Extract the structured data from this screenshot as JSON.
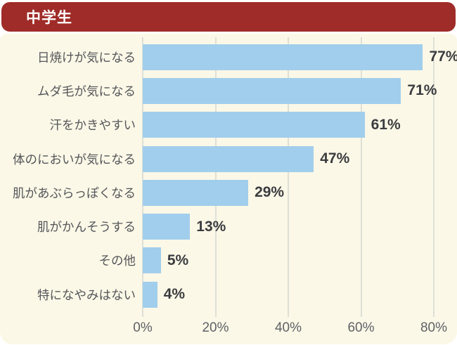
{
  "header": {
    "title": "中学生"
  },
  "colors": {
    "header_bg": "#9F2C28",
    "header_text": "#FFFFFF",
    "panel_bg": "#FBF8E7",
    "bar": "#A1CEEC",
    "label_text": "#55565A",
    "value_text": "#3B3C40",
    "axis_text": "#606167",
    "gridline": "#DEE0D7"
  },
  "chart_data": {
    "type": "bar",
    "orientation": "horizontal",
    "title": "中学生",
    "categories": [
      "日焼けが気になる",
      "ムダ毛が気になる",
      "汗をかきやすい",
      "体のにおいが気になる",
      "肌があぶらっぽくなる",
      "肌がかんそうする",
      "その他",
      "特になやみはない"
    ],
    "values": [
      77,
      71,
      61,
      47,
      29,
      13,
      5,
      4
    ],
    "value_labels": [
      "77%",
      "71%",
      "61%",
      "47%",
      "29%",
      "13%",
      "5%",
      "4%"
    ],
    "xlabel": "",
    "ylabel": "",
    "xlim": [
      0,
      80
    ],
    "x_ticks": [
      {
        "value": 0,
        "label": "0%"
      },
      {
        "value": 20,
        "label": "20%"
      },
      {
        "value": 40,
        "label": "40%"
      },
      {
        "value": 60,
        "label": "60%"
      },
      {
        "value": 80,
        "label": "80%"
      }
    ],
    "grid": "vertical",
    "legend": "none"
  }
}
